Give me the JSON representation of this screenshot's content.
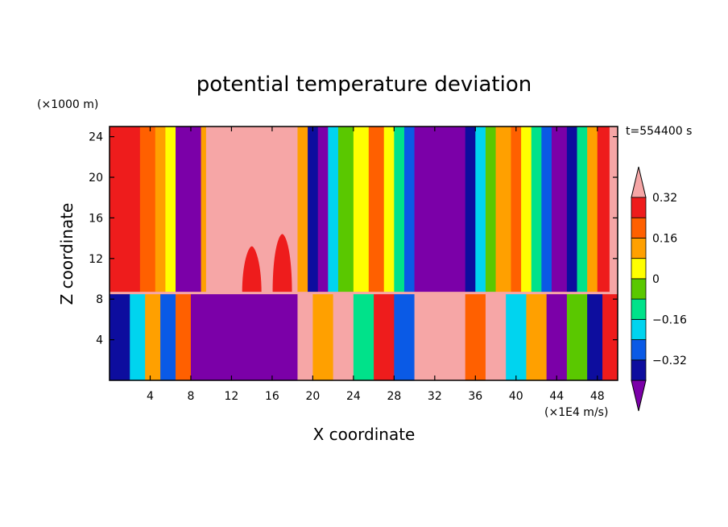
{
  "chart_data": {
    "type": "heatmap",
    "title": "potential temperature deviation",
    "xlabel": "X coordinate",
    "ylabel": "Z coordinate",
    "x_unit": "(×1E4 m/s)",
    "y_unit": "(×1000 m)",
    "time_label": "t=554400 s",
    "xlim": [
      0,
      50
    ],
    "ylim": [
      0,
      25
    ],
    "x_ticks": [
      4,
      8,
      12,
      16,
      20,
      24,
      28,
      32,
      36,
      40,
      44,
      48
    ],
    "y_ticks": [
      4,
      8,
      12,
      16,
      20,
      24
    ],
    "interface_z": 8.6,
    "colorbar": {
      "levels": [
        -0.4,
        -0.32,
        -0.24,
        -0.16,
        -0.08,
        0,
        0.08,
        0.16,
        0.24,
        0.32,
        0.4
      ],
      "tick_labels": [
        "0.32",
        "0.16",
        "0",
        "−0.16",
        "−0.32"
      ],
      "tick_values": [
        0.32,
        0.16,
        0,
        -0.16,
        -0.32
      ],
      "colors": [
        "#7b00a8",
        "#0d0d9e",
        "#0a5ae6",
        "#00d4ef",
        "#00e28a",
        "#5ac800",
        "#ffff00",
        "#ffa000",
        "#ff6000",
        "#ee1c1c",
        "#f6a6a6"
      ],
      "extend": "both"
    },
    "upper_layer_columns": [
      {
        "x0": 0,
        "x1": 3,
        "level": 9
      },
      {
        "x0": 3,
        "x1": 4.5,
        "level": 8
      },
      {
        "x0": 4.5,
        "x1": 5.5,
        "level": 7
      },
      {
        "x0": 5.5,
        "x1": 6.5,
        "level": 6
      },
      {
        "x0": 6.5,
        "x1": 9,
        "level": 0
      },
      {
        "x0": 9,
        "x1": 9.5,
        "level": 7
      },
      {
        "x0": 9.5,
        "x1": 18.5,
        "level": 10
      },
      {
        "x0": 18.5,
        "x1": 19.5,
        "level": 7
      },
      {
        "x0": 19.5,
        "x1": 20.5,
        "level": 1
      },
      {
        "x0": 20.5,
        "x1": 21.5,
        "level": 0
      },
      {
        "x0": 21.5,
        "x1": 22.5,
        "level": 3
      },
      {
        "x0": 22.5,
        "x1": 24,
        "level": 5
      },
      {
        "x0": 24,
        "x1": 25.5,
        "level": 6
      },
      {
        "x0": 25.5,
        "x1": 27,
        "level": 8
      },
      {
        "x0": 27,
        "x1": 28,
        "level": 6
      },
      {
        "x0": 28,
        "x1": 29,
        "level": 4
      },
      {
        "x0": 29,
        "x1": 30,
        "level": 2
      },
      {
        "x0": 30,
        "x1": 35,
        "level": 0
      },
      {
        "x0": 35,
        "x1": 36,
        "level": 1
      },
      {
        "x0": 36,
        "x1": 37,
        "level": 3
      },
      {
        "x0": 37,
        "x1": 38,
        "level": 5
      },
      {
        "x0": 38,
        "x1": 39.5,
        "level": 7
      },
      {
        "x0": 39.5,
        "x1": 40.5,
        "level": 8
      },
      {
        "x0": 40.5,
        "x1": 41.5,
        "level": 6
      },
      {
        "x0": 41.5,
        "x1": 42.5,
        "level": 4
      },
      {
        "x0": 42.5,
        "x1": 43.5,
        "level": 2
      },
      {
        "x0": 43.5,
        "x1": 45,
        "level": 0
      },
      {
        "x0": 45,
        "x1": 46,
        "level": 1
      },
      {
        "x0": 46,
        "x1": 47,
        "level": 4
      },
      {
        "x0": 47,
        "x1": 48,
        "level": 7
      },
      {
        "x0": 48,
        "x1": 49.2,
        "level": 9
      },
      {
        "x0": 49.2,
        "x1": 50,
        "level": 10
      }
    ],
    "lower_layer_columns": [
      {
        "x0": 0,
        "x1": 2,
        "level": 1
      },
      {
        "x0": 2,
        "x1": 3.5,
        "level": 3
      },
      {
        "x0": 3.5,
        "x1": 5,
        "level": 7
      },
      {
        "x0": 5,
        "x1": 6.5,
        "level": 2
      },
      {
        "x0": 6.5,
        "x1": 8,
        "level": 8
      },
      {
        "x0": 8,
        "x1": 18.5,
        "level": 0
      },
      {
        "x0": 18.5,
        "x1": 20,
        "level": 10
      },
      {
        "x0": 20,
        "x1": 22,
        "level": 7
      },
      {
        "x0": 22,
        "x1": 24,
        "level": 10
      },
      {
        "x0": 24,
        "x1": 26,
        "level": 4
      },
      {
        "x0": 26,
        "x1": 28,
        "level": 9
      },
      {
        "x0": 28,
        "x1": 30,
        "level": 2
      },
      {
        "x0": 30,
        "x1": 35,
        "level": 10
      },
      {
        "x0": 35,
        "x1": 37,
        "level": 8
      },
      {
        "x0": 37,
        "x1": 39,
        "level": 10
      },
      {
        "x0": 39,
        "x1": 41,
        "level": 3
      },
      {
        "x0": 41,
        "x1": 43,
        "level": 7
      },
      {
        "x0": 43,
        "x1": 45,
        "level": 0
      },
      {
        "x0": 45,
        "x1": 47,
        "level": 5
      },
      {
        "x0": 47,
        "x1": 48.5,
        "level": 1
      },
      {
        "x0": 48.5,
        "x1": 50,
        "level": 9
      }
    ],
    "plumes": [
      {
        "x": 14,
        "z_top": 13.2,
        "level": 9
      },
      {
        "x": 17,
        "z_top": 14.4,
        "level": 9
      }
    ]
  }
}
